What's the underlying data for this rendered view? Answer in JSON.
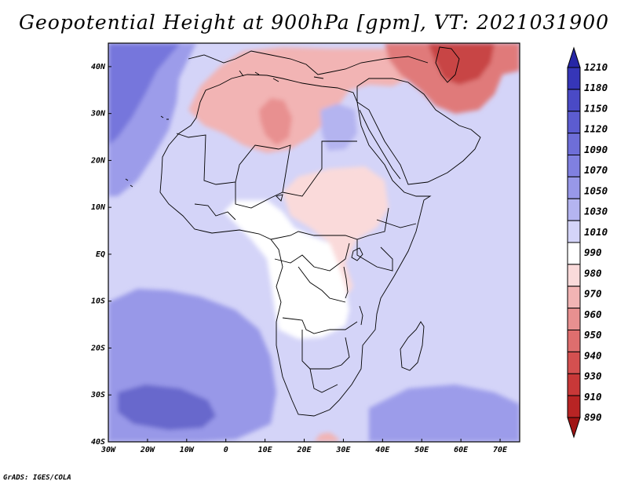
{
  "title": "Geopotential Height at 900hPa [gpm], VT: 2021031900",
  "credit": "GrADS: IGES/COLA",
  "variable": "Geopotential Height",
  "level": "900hPa",
  "units": "gpm",
  "valid_time": "2021031900",
  "map": {
    "lon_range": [
      -30,
      75
    ],
    "lat_range": [
      -40,
      45
    ],
    "x_tick_labels": [
      "30W",
      "20W",
      "10W",
      "0",
      "10E",
      "20E",
      "30E",
      "40E",
      "50E",
      "60E",
      "70E"
    ],
    "y_tick_labels": [
      "40N",
      "30N",
      "20N",
      "10N",
      "EQ",
      "10S",
      "20S",
      "30S",
      "40S"
    ]
  },
  "colorbar": {
    "labels": [
      "1210",
      "1180",
      "1150",
      "1120",
      "1090",
      "1070",
      "1050",
      "1030",
      "1010",
      "990",
      "980",
      "970",
      "960",
      "950",
      "940",
      "930",
      "910",
      "890"
    ],
    "colors": [
      "#2626a6",
      "#3636b8",
      "#4a4ac6",
      "#5c5cd0",
      "#6e6ed8",
      "#8080e0",
      "#9898e8",
      "#b4b4f0",
      "#d4d4f8",
      "#ffffff",
      "#fadada",
      "#f2b4b4",
      "#e89090",
      "#de6e6e",
      "#d45050",
      "#c83838",
      "#b82424",
      "#a01414"
    ]
  },
  "regions": [
    {
      "name": "north-atlantic-high",
      "color": "#7676dc"
    },
    {
      "name": "north-atlantic-mid",
      "color": "#9c9cea"
    },
    {
      "name": "atlantic-background",
      "color": "#d4d4f8"
    },
    {
      "name": "sahara-low",
      "color": "#f2b4b4"
    },
    {
      "name": "algeria-low-core",
      "color": "#e89090"
    },
    {
      "name": "iran-low",
      "color": "#e07a7a"
    },
    {
      "name": "iran-low-core",
      "color": "#c84444"
    },
    {
      "name": "sudan-low",
      "color": "#fadada"
    },
    {
      "name": "congo-white",
      "color": "#ffffff"
    },
    {
      "name": "south-atlantic-high",
      "color": "#9898e8"
    },
    {
      "name": "south-atlantic-core",
      "color": "#6868cc"
    },
    {
      "name": "indian-ocean-high",
      "color": "#9c9cea"
    },
    {
      "name": "east-med-high",
      "color": "#b4b4f0"
    }
  ]
}
